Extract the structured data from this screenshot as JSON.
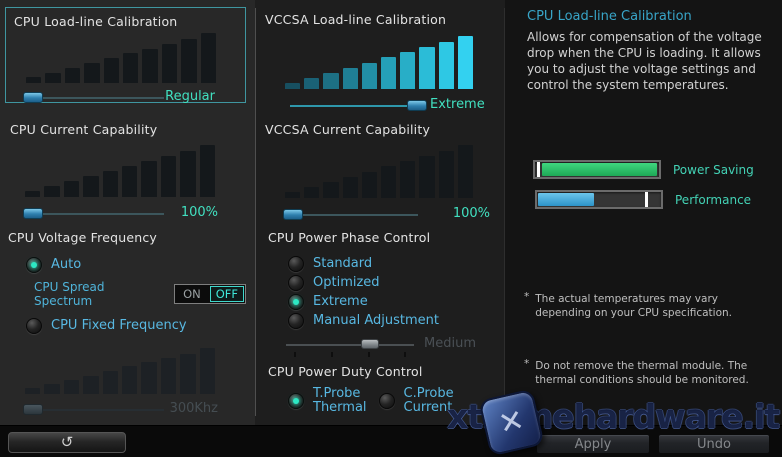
{
  "left": {
    "llc": {
      "title": "CPU Load-line Calibration",
      "value": "Regular"
    },
    "current": {
      "title": "CPU Current Capability",
      "value": "100%"
    },
    "voltage_frequency": {
      "title": "CPU Voltage Frequency",
      "auto_label": "Auto",
      "spread_spectrum_label": "CPU Spread Spectrum",
      "toggle_on": "ON",
      "toggle_off": "OFF",
      "toggle_state": "OFF",
      "fixed_label": "CPU Fixed Frequency",
      "frequency_value": "300Khz",
      "selected": "Auto"
    }
  },
  "middle": {
    "vccsa_llc": {
      "title": "VCCSA Load-line Calibration",
      "value": "Extreme"
    },
    "vccsa_current": {
      "title": "VCCSA Current Capability",
      "value": "100%"
    },
    "phase_control": {
      "title": "CPU Power Phase Control",
      "options": [
        "Standard",
        "Optimized",
        "Extreme",
        "Manual Adjustment"
      ],
      "selected": "Extreme",
      "slider_value": "Medium"
    },
    "duty_control": {
      "title": "CPU Power Duty Control",
      "option1_line1": "T.Probe",
      "option1_line2": "Thermal",
      "option2_line1": "C.Probe",
      "option2_line2": "Current",
      "selected": "T.Probe Thermal"
    }
  },
  "right": {
    "title": "CPU Load-line Calibration",
    "description": "Allows for compensation of the voltage drop when the CPU is loading. It allows you to adjust the voltage settings and control the system temperatures.",
    "gauges": [
      {
        "label": "Power Saving",
        "fill_color": "#2abf68",
        "fill_left_pct": 6,
        "fill_width_pct": 92,
        "marker_pct": 2
      },
      {
        "label": "Performance",
        "fill_color": "#3aa6da",
        "fill_left_pct": 1,
        "fill_width_pct": 45,
        "marker_pct": 87
      }
    ],
    "note_bullet": "*",
    "notes": [
      "The actual temperatures may vary depending on your CPU specification.",
      "Do not remove the thermal module. The thermal conditions should be monitored."
    ]
  },
  "footer": {
    "back_glyph": "↺",
    "apply_label": "Apply",
    "undo_label": "Undo"
  },
  "watermark": {
    "text": "xtremehardware.it",
    "logo_glyph": "✕"
  },
  "colors": {
    "accent_value": "#41e0c0",
    "label_blue": "#58b8e2",
    "panel_border": "#3f96a0",
    "right_title": "#38a5c8",
    "gauge_green": "#2abf68",
    "gauge_blue": "#3aa6da"
  }
}
